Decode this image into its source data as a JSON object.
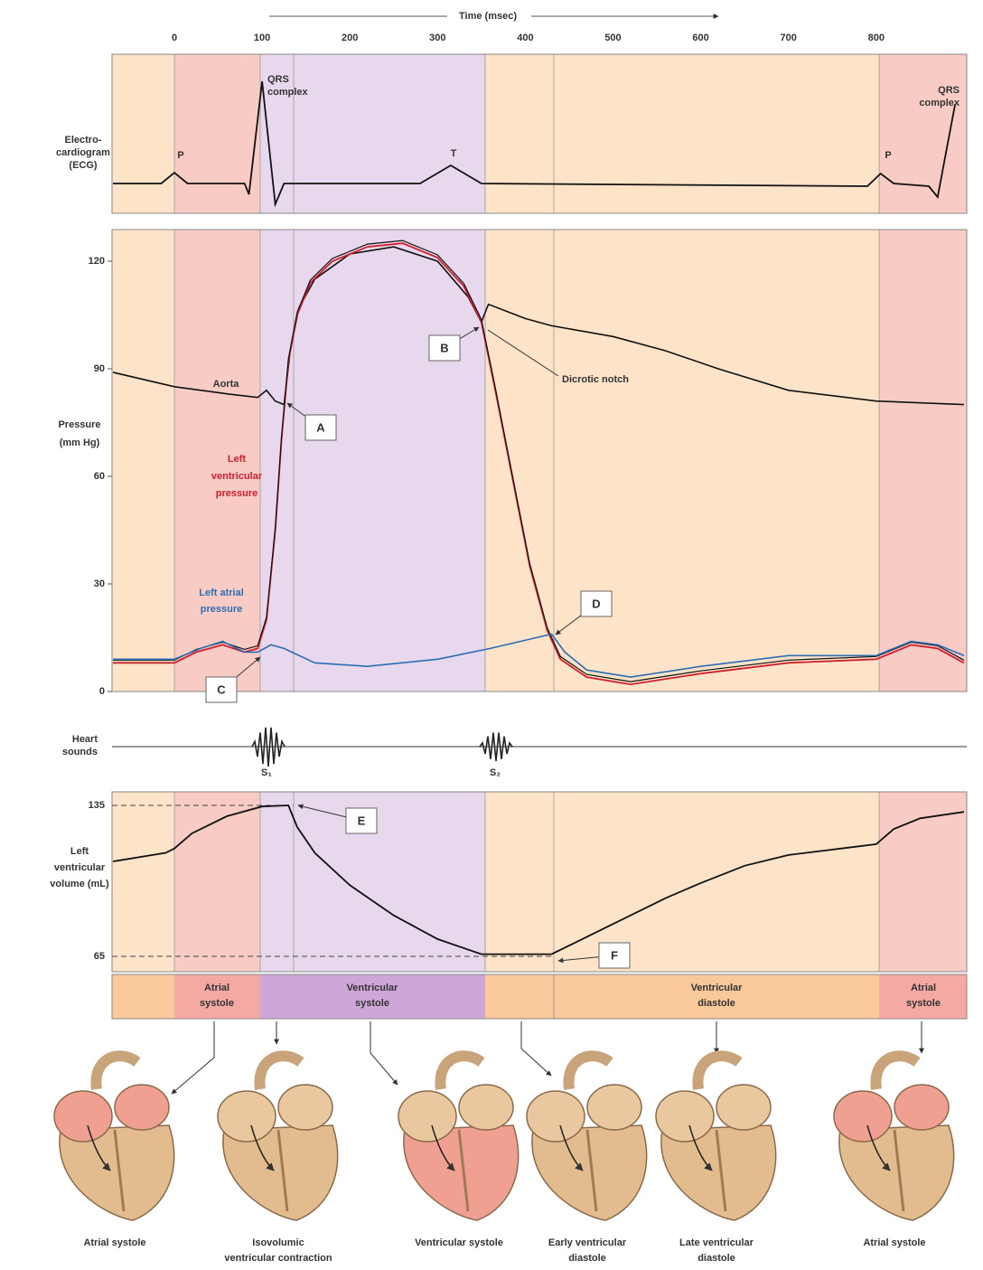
{
  "time_axis": {
    "label": "Time (msec)",
    "ticks": [
      "0",
      "100",
      "200",
      "300",
      "400",
      "500",
      "600",
      "700",
      "800"
    ]
  },
  "ecg": {
    "label": [
      "Electro-",
      "cardiogram",
      "(ECG)"
    ],
    "waves": {
      "p1": "P",
      "qrs1": [
        "QRS",
        "complex"
      ],
      "t": "T",
      "p2": "P",
      "qrs2": [
        "QRS",
        "complex"
      ]
    }
  },
  "pressure": {
    "label": [
      "Pressure",
      "(mm Hg)"
    ],
    "ticks": [
      "120",
      "90",
      "60",
      "30",
      "0"
    ],
    "aorta": "Aorta",
    "left_ventricular": [
      "Left",
      "ventricular",
      "pressure"
    ],
    "left_atrial": [
      "Left atrial",
      "pressure"
    ],
    "dicrotic_notch": "Dicrotic notch",
    "markers": [
      "A",
      "B",
      "C",
      "D"
    ]
  },
  "heart_sounds": {
    "label": [
      "Heart",
      "sounds"
    ],
    "sounds": [
      "S₁",
      "S₂"
    ]
  },
  "volume": {
    "label": [
      "Left",
      "ventricular",
      "volume (mL)"
    ],
    "ticks": [
      "135",
      "65"
    ],
    "markers": [
      "E",
      "F"
    ]
  },
  "phases": [
    [
      "Atrial",
      "systole"
    ],
    [
      "Ventricular",
      "systole"
    ],
    [
      "Ventricular",
      "diastole"
    ],
    [
      "Atrial",
      "systole"
    ]
  ],
  "hearts": [
    [
      "Atrial systole"
    ],
    [
      "Isovolumic",
      "ventricular contraction"
    ],
    [
      "Ventricular systole"
    ],
    [
      "Early ventricular",
      "diastole"
    ],
    [
      "Late ventricular",
      "diastole"
    ],
    [
      "Atrial systole"
    ]
  ]
}
